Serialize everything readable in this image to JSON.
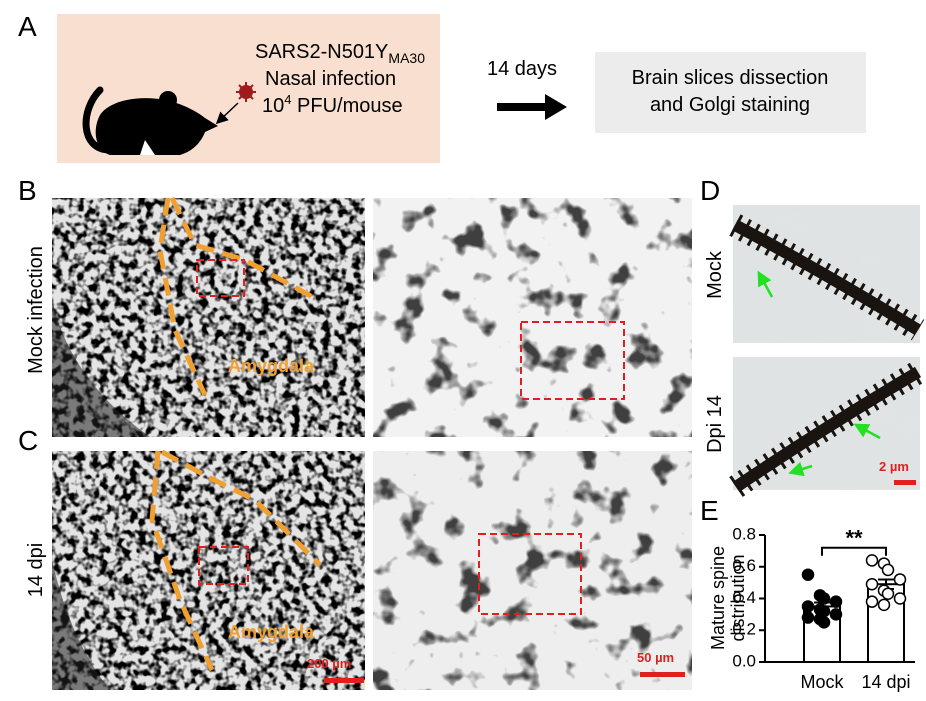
{
  "panel_a": {
    "label": "A",
    "virus": "SARS2-N501Y",
    "virus_subscript": "MA30",
    "route": "Nasal infection",
    "dose_base": "10",
    "dose_exponent": "4",
    "dose_unit": " PFU/mouse",
    "interval": "14 days",
    "procedure": [
      "Brain slices dissection",
      "and Golgi staining"
    ]
  },
  "panel_b": {
    "label": "B",
    "condition": "Mock infection",
    "region": "Amygdala"
  },
  "panel_c": {
    "label": "C",
    "condition": "14 dpi",
    "region": "Amygdala",
    "scale_low": "200 µm",
    "scale_high": "50 µm"
  },
  "panel_d": {
    "label": "D",
    "conditions": [
      "Mock",
      "Dpi 14"
    ],
    "scale": "2 µm"
  },
  "panel_e": {
    "label": "E"
  },
  "chart_data": {
    "type": "bar",
    "ylabel": [
      "Mature spine",
      "distribution"
    ],
    "annotation": "**",
    "categories": [
      "Mock",
      "14 dpi"
    ],
    "values": [
      0.35,
      0.49
    ],
    "errors": [
      0.025,
      0.03
    ],
    "points": [
      [
        0.55,
        0.42,
        0.4,
        0.38,
        0.35,
        0.33,
        0.32,
        0.3,
        0.28,
        0.27,
        0.25
      ],
      [
        0.64,
        0.62,
        0.58,
        0.52,
        0.49,
        0.45,
        0.43,
        0.4,
        0.38,
        0.36
      ]
    ],
    "ylim": [
      0,
      0.8
    ],
    "yticks": [
      {
        "value": 0,
        "label": "0.0"
      },
      0.2,
      0.4,
      0.6,
      0.8
    ],
    "color": "#ffffff"
  }
}
